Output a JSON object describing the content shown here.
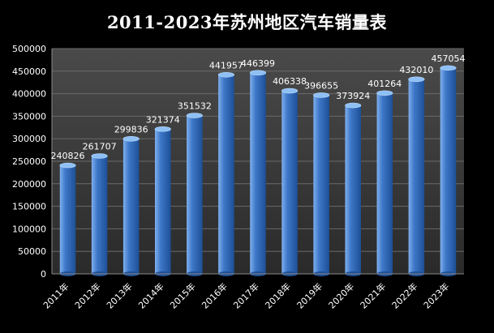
{
  "title": "2011-2023年苏州地区汽车销量表",
  "colors": {
    "background": "#000000",
    "plot_top": "#4a4a4a",
    "plot_bottom": "#2a2a2a",
    "bar_light": "#7fb0ee",
    "bar_mid": "#3f78c9",
    "bar_dark": "#1d4f96",
    "text": "#ffffff"
  },
  "chart_data": {
    "type": "bar",
    "title": "2011-2023年苏州地区汽车销量表",
    "categories": [
      "2011年",
      "2012年",
      "2013年",
      "2014年",
      "2015年",
      "2016年",
      "2017年",
      "2018年",
      "2019年",
      "2020年",
      "2021年",
      "2022年",
      "2023年"
    ],
    "values": [
      240826,
      261707,
      299836,
      321374,
      351532,
      441957,
      446399,
      406338,
      396655,
      373924,
      401264,
      432010,
      457054
    ],
    "yticks": [
      0,
      50000,
      100000,
      150000,
      200000,
      250000,
      300000,
      350000,
      400000,
      450000,
      500000
    ],
    "ylim": [
      0,
      500000
    ],
    "grid": true,
    "legend": "none",
    "data_labels": true
  }
}
